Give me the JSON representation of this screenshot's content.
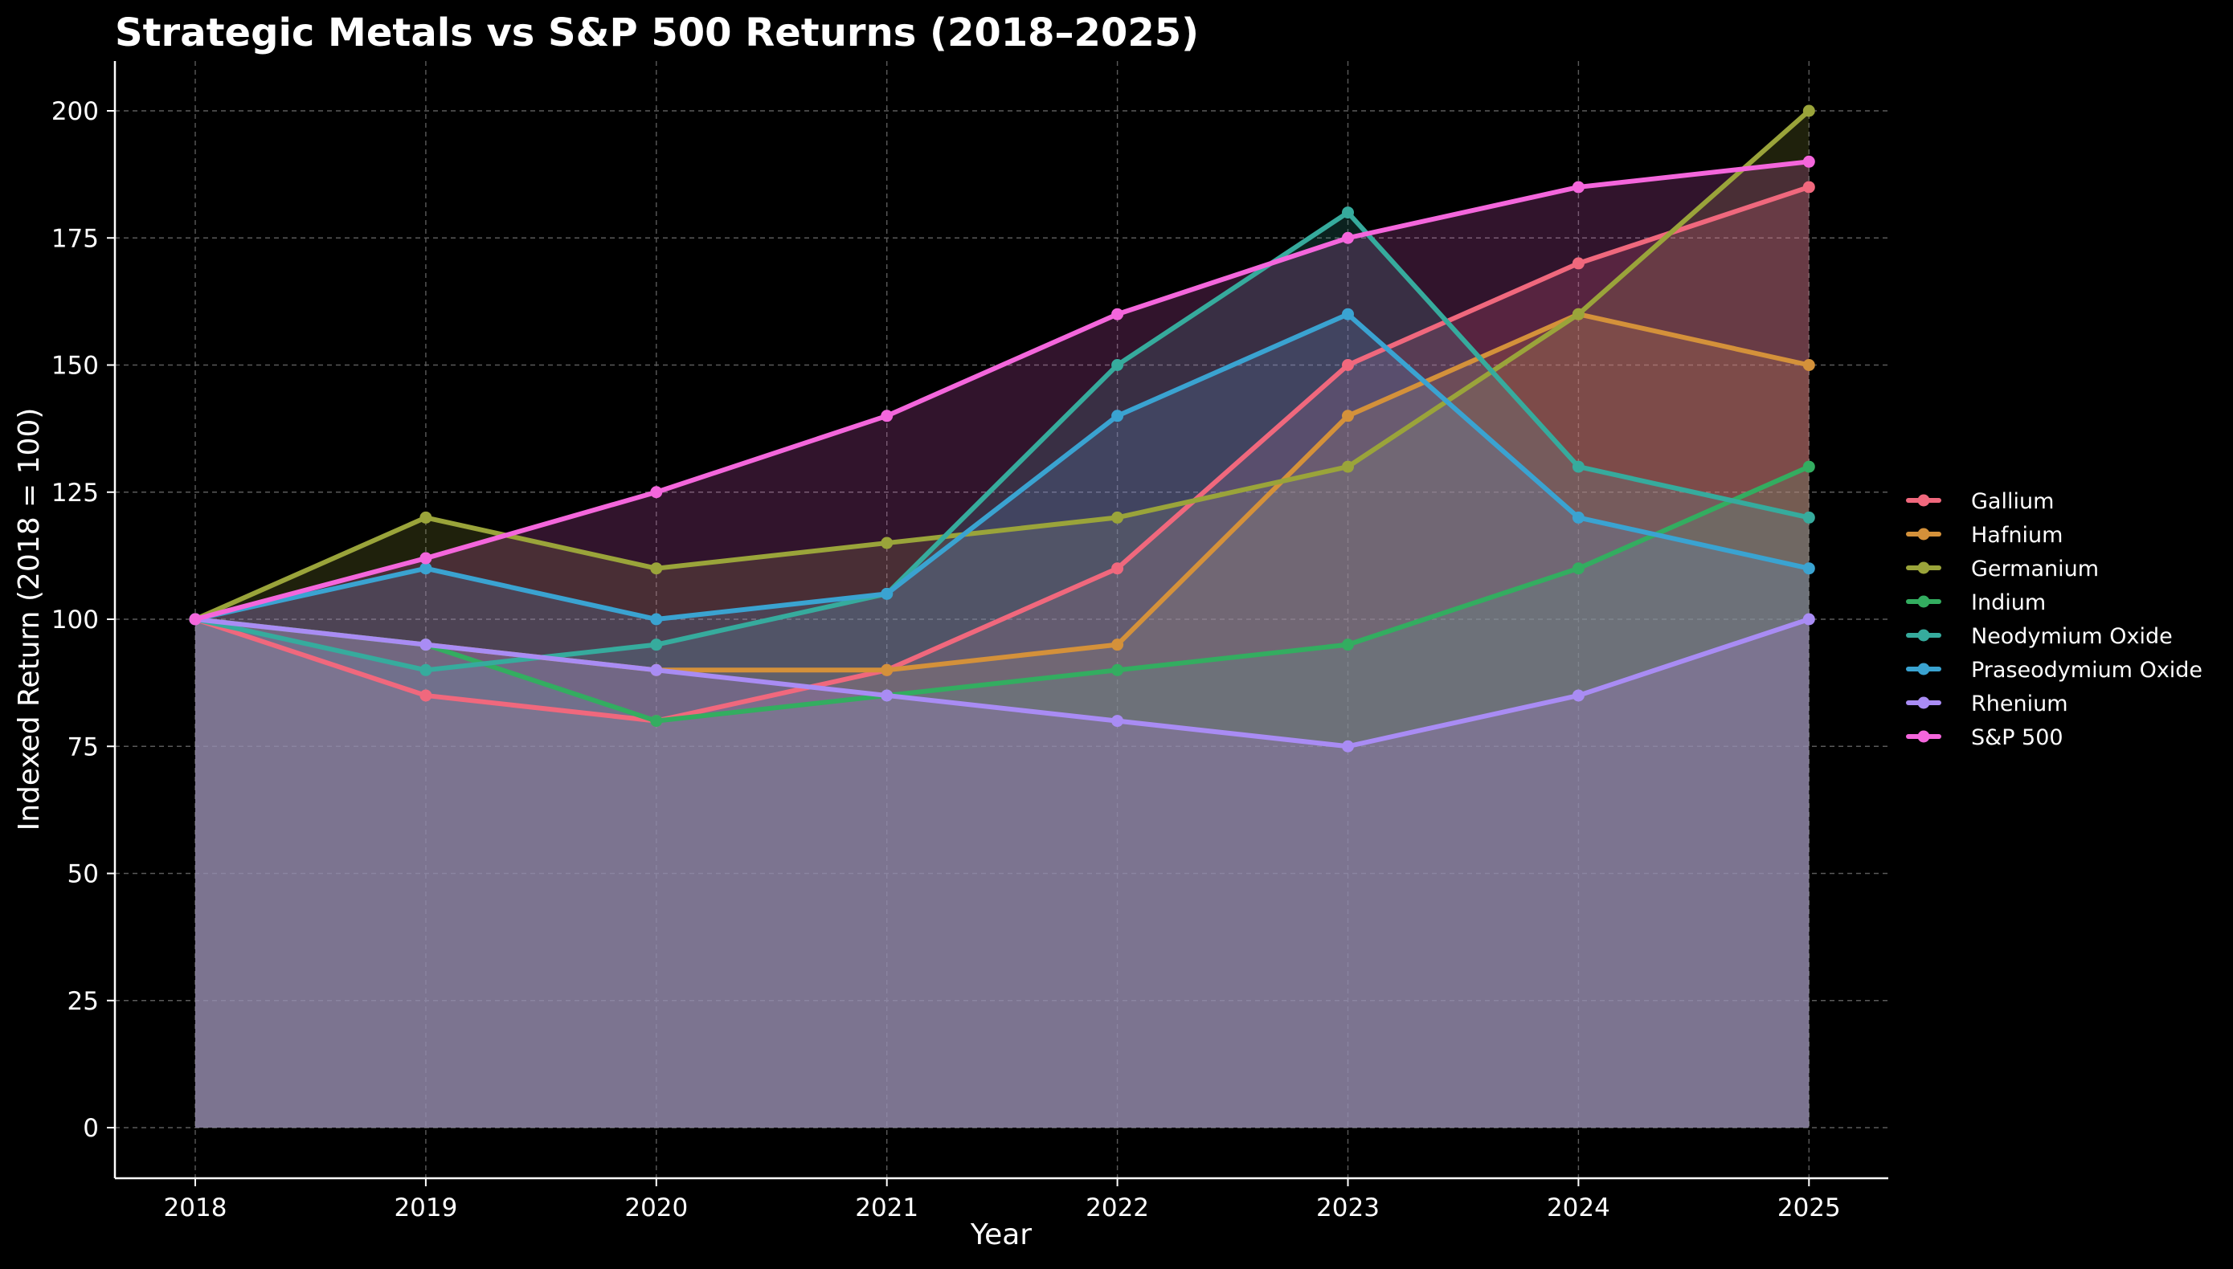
{
  "chart_data": {
    "type": "area",
    "title": "Strategic Metals vs S&P 500 Returns (2018–2025)",
    "xlabel": "Year",
    "ylabel": "Indexed Return (2018 = 100)",
    "x": [
      "2018",
      "2019",
      "2020",
      "2021",
      "2022",
      "2023",
      "2024",
      "2025"
    ],
    "ylim": [
      -10,
      210
    ],
    "yticks": [
      0,
      25,
      50,
      75,
      100,
      125,
      150,
      175,
      200
    ],
    "grid": true,
    "legend_position": "right",
    "series": [
      {
        "name": "Gallium",
        "color": "#f0687d",
        "values": [
          100,
          85,
          80,
          90,
          110,
          150,
          170,
          185
        ]
      },
      {
        "name": "Hafnium",
        "color": "#d4913a",
        "values": [
          100,
          95,
          90,
          90,
          95,
          140,
          160,
          150
        ]
      },
      {
        "name": "Germanium",
        "color": "#9aa43a",
        "values": [
          100,
          120,
          110,
          115,
          120,
          130,
          160,
          200
        ]
      },
      {
        "name": "Indium",
        "color": "#33ad60",
        "values": [
          100,
          95,
          80,
          85,
          90,
          95,
          110,
          130
        ]
      },
      {
        "name": "Neodymium Oxide",
        "color": "#36ab9d",
        "values": [
          100,
          90,
          95,
          105,
          150,
          180,
          130,
          120
        ]
      },
      {
        "name": "Praseodymium Oxide",
        "color": "#3aa3d1",
        "values": [
          100,
          110,
          100,
          105,
          140,
          160,
          120,
          110
        ]
      },
      {
        "name": "Rhenium",
        "color": "#a98cf4",
        "values": [
          100,
          95,
          90,
          85,
          80,
          75,
          85,
          100
        ]
      },
      {
        "name": "S&P 500",
        "color": "#f466dc",
        "values": [
          100,
          112,
          125,
          140,
          160,
          175,
          185,
          190
        ]
      }
    ]
  }
}
